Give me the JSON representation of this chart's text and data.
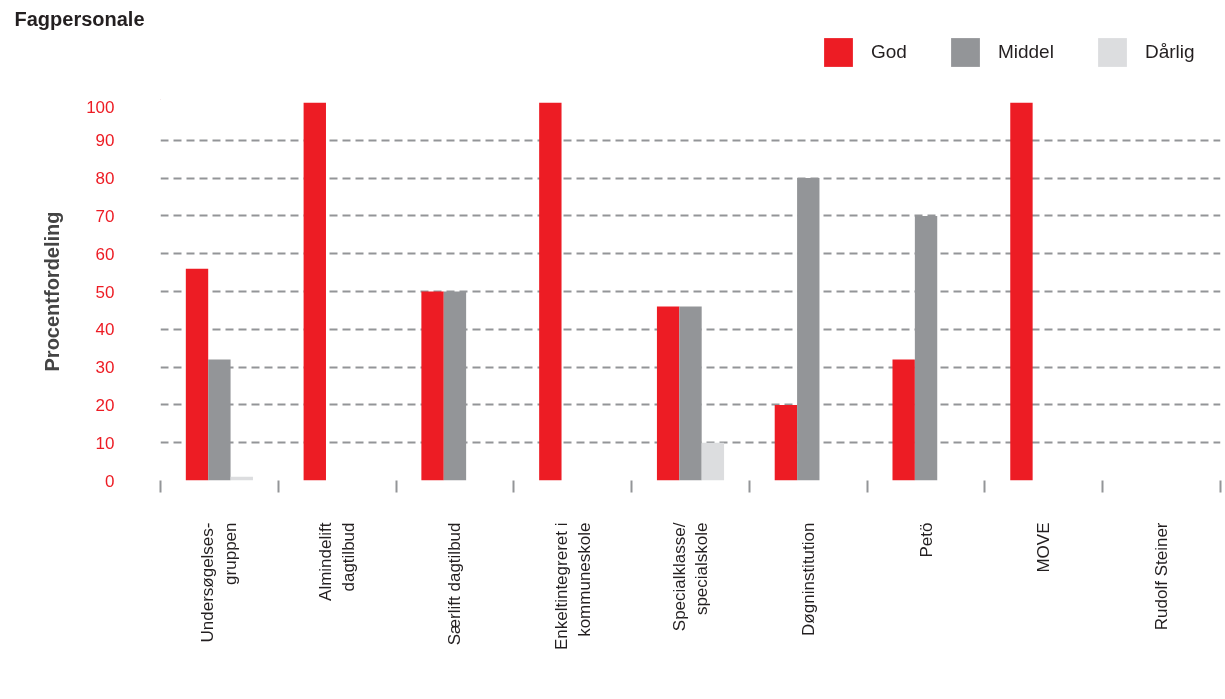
{
  "chart_data": {
    "type": "bar",
    "title": "Fagpersonale",
    "ylabel": "Procentfordeling",
    "categories": [
      "Undersøgelses-\ngruppen",
      "Almindelift\ndagtilbud",
      "Særlift dagtilbud",
      "Enkeltintegreret i\nkommuneskole",
      "Specialklasse/\nspecialskole",
      "Døgninstitution",
      "Petö",
      "MOVE",
      "Rudolf Steiner"
    ],
    "series": [
      {
        "name": "God",
        "color": "#ed1c24",
        "values": [
          56,
          100,
          50,
          100,
          46,
          20,
          32,
          100,
          0
        ]
      },
      {
        "name": "Middel",
        "color": "#939598",
        "values": [
          32,
          0,
          50,
          0,
          46,
          80,
          70,
          0,
          0
        ]
      },
      {
        "name": "Dårlig",
        "color": "#dcdddf",
        "values": [
          1,
          0,
          0,
          0,
          10,
          0,
          0,
          0,
          0
        ]
      }
    ],
    "ylim": [
      0,
      100
    ],
    "yticks": [
      0,
      10,
      20,
      30,
      40,
      50,
      60,
      70,
      80,
      90,
      100
    ],
    "grid": "y",
    "legend": "top right"
  }
}
